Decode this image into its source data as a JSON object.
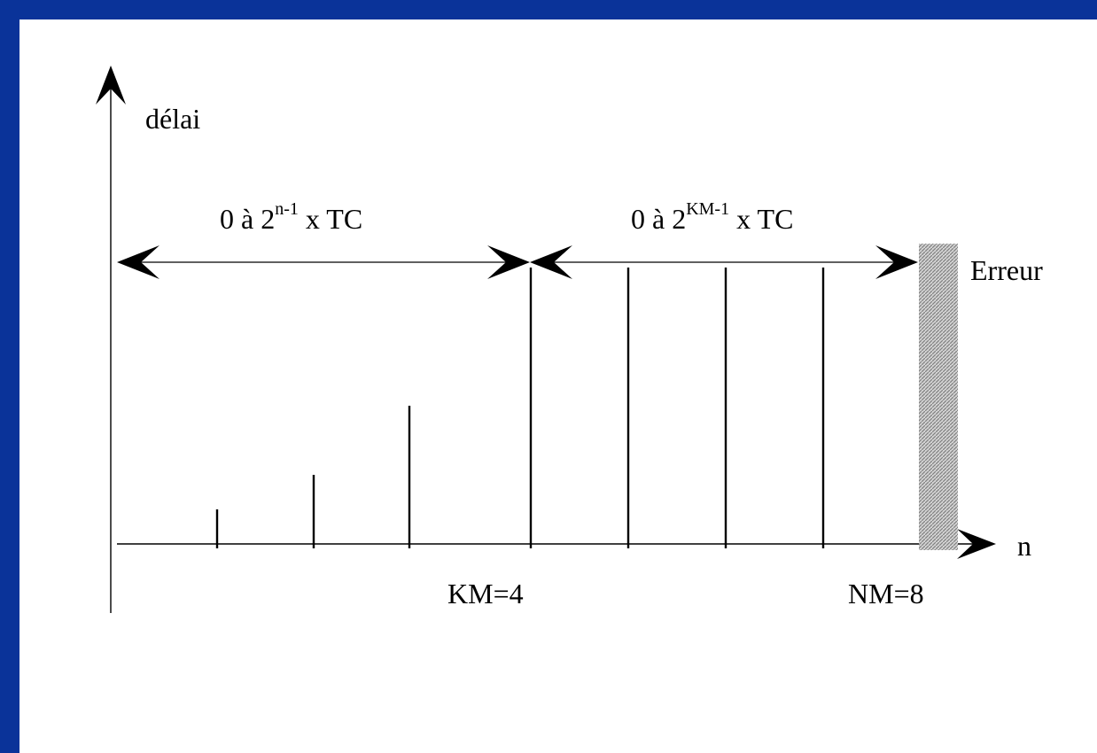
{
  "axes": {
    "y_label": "délai",
    "x_label": "n"
  },
  "ranges": {
    "first": {
      "prefix": "0 à 2",
      "exponent": "n-1",
      "suffix": " x TC"
    },
    "second": {
      "prefix": "0 à 2",
      "exponent": "KM-1",
      "suffix": " x TC"
    }
  },
  "error_label": "Erreur",
  "markers": {
    "km": "KM=4",
    "nm": "NM=8"
  },
  "stems": {
    "n": [
      1,
      2,
      3,
      4,
      5,
      6,
      7
    ],
    "relative_delay": [
      1,
      2,
      4,
      8,
      8,
      8,
      8
    ]
  },
  "colors": {
    "frame": "#0a3399",
    "background": "#ffffff",
    "ink": "#000000",
    "error_zone": "#b0b0b0"
  }
}
